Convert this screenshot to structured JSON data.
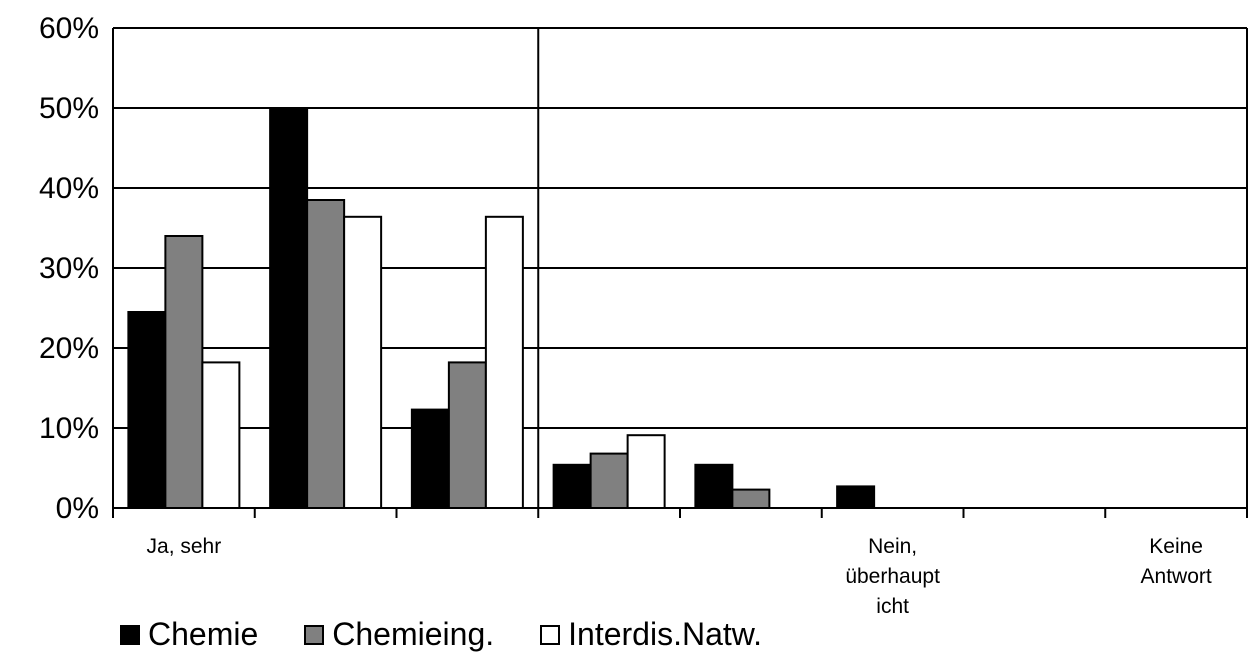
{
  "chart_data": {
    "type": "bar",
    "categories": [
      "Ja, sehr",
      "",
      "",
      "",
      "",
      "Nein,\nüberhaupt\nicht",
      "",
      "Keine\nAntwort"
    ],
    "x_tick_labels": [
      "Ja, sehr",
      "",
      "",
      "",
      "",
      "Nein,\nüberhaupt\nicht",
      "",
      "Keine\nAntwort"
    ],
    "series": [
      {
        "name": "Chemie",
        "values": [
          24.5,
          50,
          12.3,
          5.4,
          5.4,
          2.7,
          0,
          0
        ],
        "color": "#000000"
      },
      {
        "name": "Chemieing.",
        "values": [
          34,
          38.5,
          18.2,
          6.8,
          2.3,
          0,
          0,
          0
        ],
        "color": "#808080"
      },
      {
        "name": "Interdis.Natw.",
        "values": [
          18.2,
          36.4,
          36.4,
          9.1,
          0,
          0,
          0,
          0
        ],
        "color": "#ffffff"
      }
    ],
    "y_ticks": [
      "0%",
      "10%",
      "20%",
      "30%",
      "40%",
      "50%",
      "60%"
    ],
    "ylim": [
      0,
      60
    ],
    "grid": true,
    "legend_position": "bottom-left",
    "divider_after_category": 3
  }
}
